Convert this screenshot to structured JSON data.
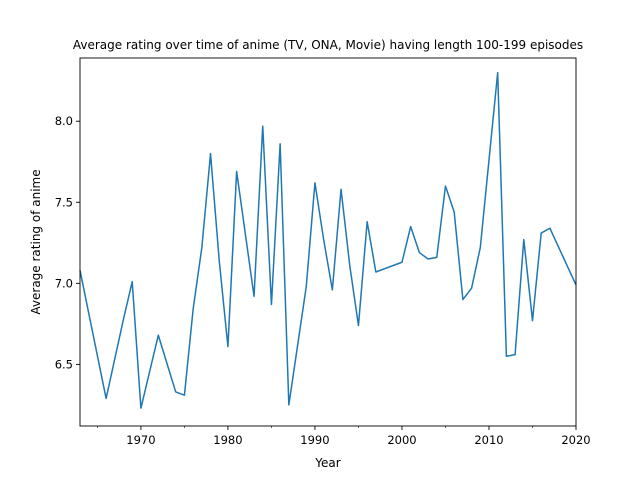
{
  "chart_data": {
    "type": "line",
    "title": "Average rating over time of anime (TV, ONA, Movie) having length 100-199 episodes",
    "xlabel": "Year",
    "ylabel": "Average rating of anime",
    "xlim": [
      1963,
      2020
    ],
    "ylim": [
      6.12,
      8.39
    ],
    "xticks": [
      1970,
      1980,
      1990,
      2000,
      2010,
      2020
    ],
    "yticks": [
      6.5,
      7.0,
      7.5,
      8.0
    ],
    "xtick_labels": [
      "1970",
      "1980",
      "1990",
      "2000",
      "2010",
      "2020"
    ],
    "ytick_labels": [
      "6.5",
      "7.0",
      "7.5",
      "8.0"
    ],
    "grid": false,
    "line_color": "#1f77b4",
    "series": [
      {
        "x": [
          1963,
          1966,
          1968,
          1969,
          1970,
          1972,
          1974,
          1975,
          1976,
          1977,
          1978,
          1979,
          1980,
          1981,
          1983,
          1984,
          1985,
          1986,
          1987,
          1989,
          1990,
          1991,
          1992,
          1993,
          1994,
          1995,
          1996,
          1997,
          2000,
          2001,
          2002,
          2003,
          2004,
          2005,
          2006,
          2007,
          2008,
          2009,
          2011,
          2012,
          2013,
          2014,
          2015,
          2016,
          2017,
          2020
        ],
        "y": [
          7.08,
          6.29,
          6.78,
          7.01,
          6.23,
          6.68,
          6.33,
          6.31,
          6.84,
          7.22,
          7.8,
          7.14,
          6.61,
          7.69,
          6.92,
          7.97,
          6.87,
          7.86,
          6.25,
          6.98,
          7.62,
          7.27,
          6.96,
          7.58,
          7.11,
          6.74,
          7.38,
          7.07,
          7.13,
          7.35,
          7.19,
          7.15,
          7.16,
          7.6,
          7.44,
          6.9,
          6.97,
          7.22,
          8.3,
          6.55,
          6.56,
          7.27,
          6.77,
          7.31,
          7.34,
          6.99
        ]
      }
    ]
  }
}
